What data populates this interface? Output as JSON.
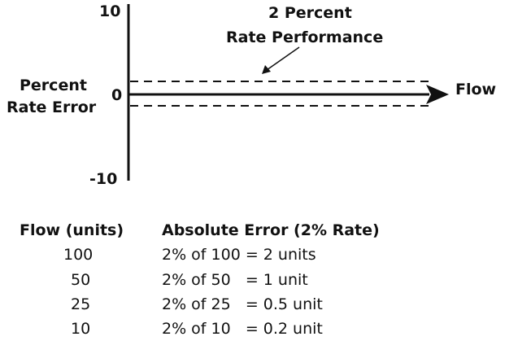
{
  "diagram": {
    "y_ticks": [
      "10",
      "0",
      "-10"
    ],
    "y_axis_label_line1": "Percent",
    "y_axis_label_line2": "Rate Error",
    "x_axis_label": "Flow",
    "band_label_line1": "2 Percent",
    "band_label_line2": "Rate Performance"
  },
  "table": {
    "headers": [
      "Flow (units)",
      "Absolute Error (2% Rate)"
    ],
    "rows": [
      {
        "flow": "100",
        "error": "2% of 100 = 2 units"
      },
      {
        "flow": "50",
        "error": "2% of 50   = 1 unit"
      },
      {
        "flow": "25",
        "error": "2% of 25   = 0.5 unit"
      },
      {
        "flow": "10",
        "error": "2% of 10   = 0.2 unit"
      }
    ]
  }
}
